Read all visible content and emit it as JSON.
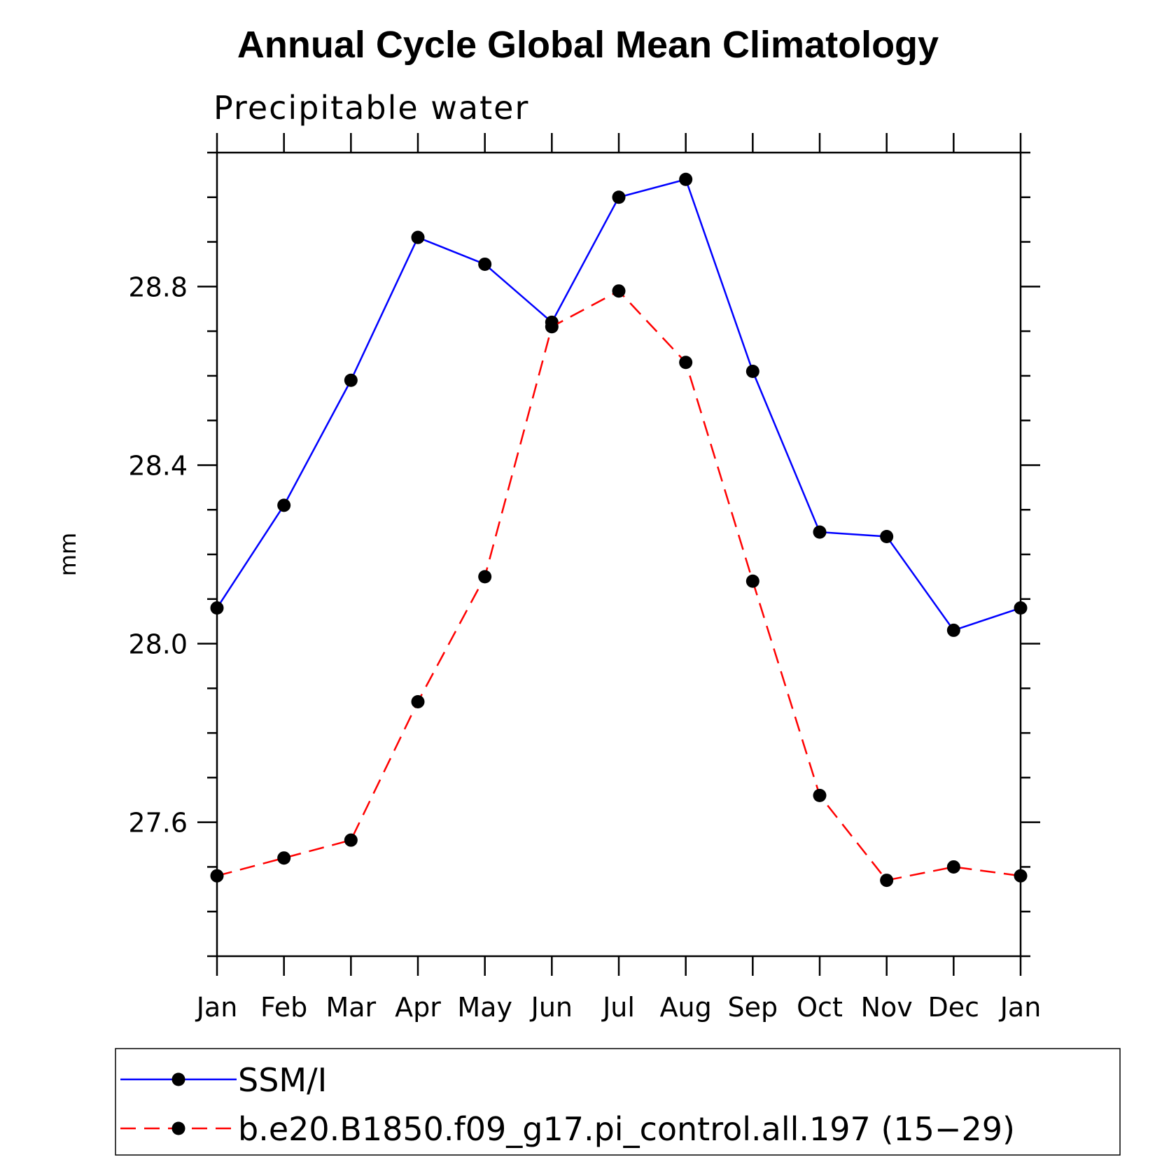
{
  "chart_data": {
    "type": "line",
    "title": "Annual Cycle Global Mean Climatology",
    "subtitle": "Precipitable water",
    "xlabel": "",
    "ylabel": "mm",
    "categories": [
      "Jan",
      "Feb",
      "Mar",
      "Apr",
      "May",
      "Jun",
      "Jul",
      "Aug",
      "Sep",
      "Oct",
      "Nov",
      "Dec",
      "Jan"
    ],
    "ylim": [
      27.3,
      29.1
    ],
    "yticks": [
      27.6,
      28.0,
      28.4,
      28.8
    ],
    "ytick_labels": [
      "27.6",
      "28.0",
      "28.4",
      "28.8"
    ],
    "y_minor_step": 0.1,
    "series": [
      {
        "name": "SSM/I",
        "color": "#0000ff",
        "dash": "solid",
        "marker": "circle",
        "values": [
          28.08,
          28.31,
          28.59,
          28.91,
          28.85,
          28.72,
          29.0,
          29.04,
          28.61,
          28.25,
          28.24,
          28.03,
          28.08
        ]
      },
      {
        "name": "b.e20.B1850.f09_g17.pi_control.all.197 (15−29)",
        "color": "#ff0000",
        "dash": "dashed",
        "marker": "circle",
        "values": [
          27.48,
          27.52,
          27.56,
          27.87,
          28.15,
          28.71,
          28.79,
          28.63,
          28.14,
          27.66,
          27.47,
          27.5,
          27.48
        ]
      }
    ],
    "legend_position": "bottom"
  }
}
